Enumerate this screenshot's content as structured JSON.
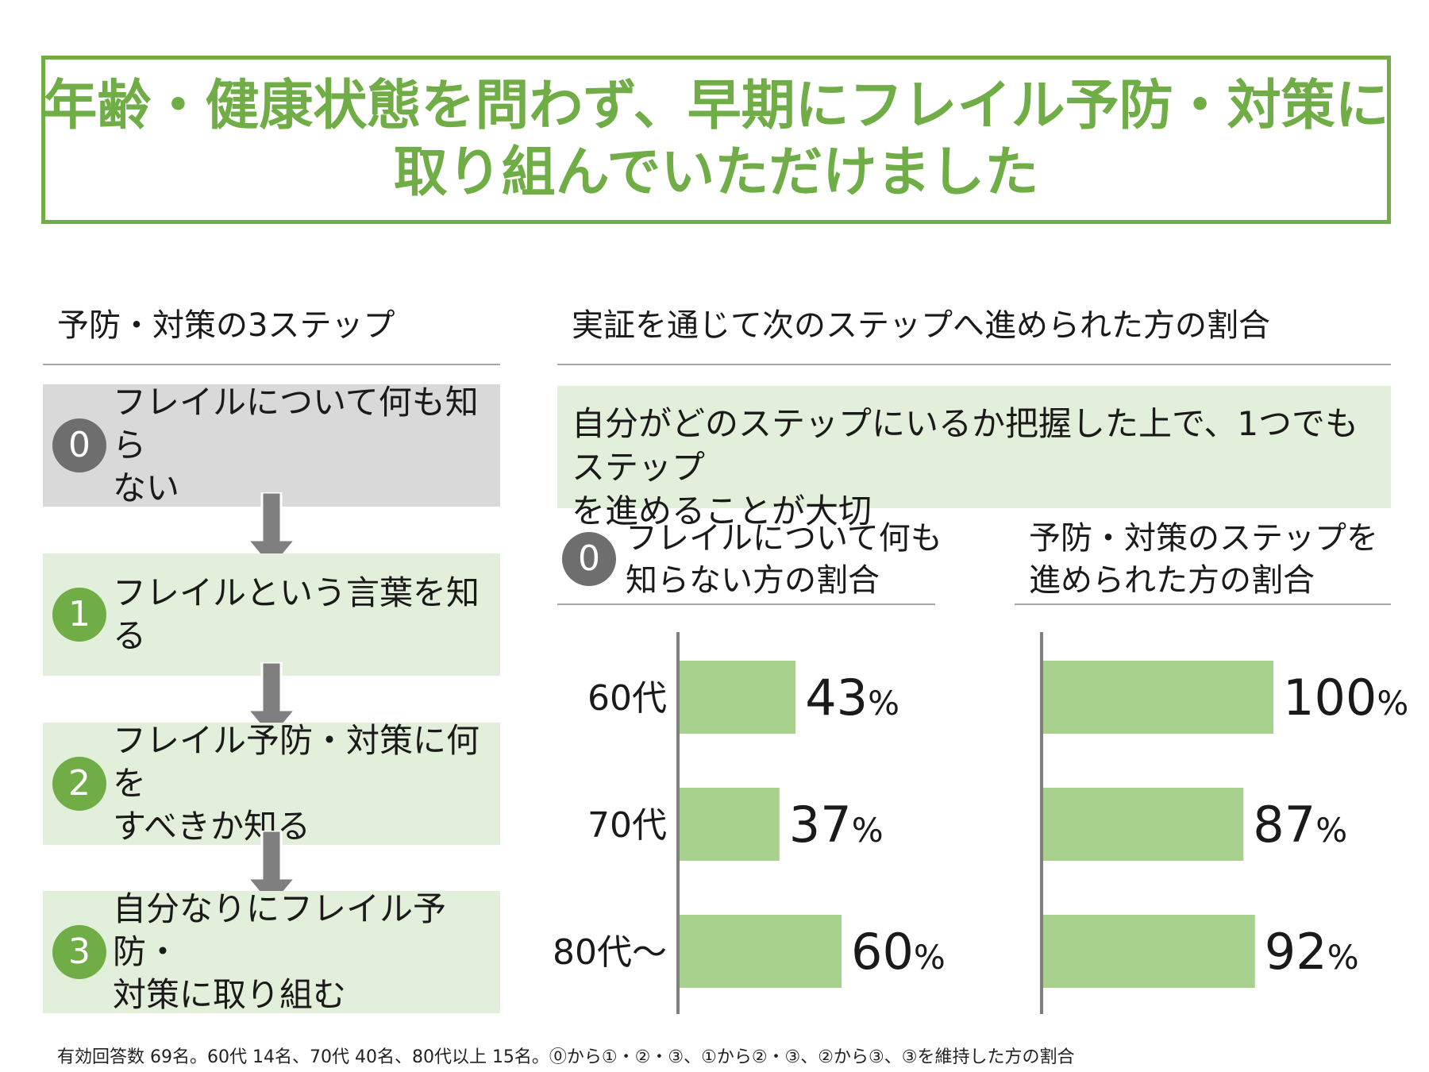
{
  "title": {
    "line1": "年齢・健康状態を問わず、早期にフレイル予防・対策に",
    "line2": "取り組んでいただけました"
  },
  "steps_section": {
    "heading": "予防・対策の3ステップ",
    "steps": [
      {
        "num": "0",
        "line1": "フレイルについて何も知ら",
        "line2": "ない"
      },
      {
        "num": "1",
        "line1": "フレイルという言葉を知る",
        "line2": ""
      },
      {
        "num": "2",
        "line1": "フレイル予防・対策に何を",
        "line2": "すべきか知る"
      },
      {
        "num": "3",
        "line1": "自分なりにフレイル予防・",
        "line2": "対策に取り組む"
      }
    ]
  },
  "results_section": {
    "heading": "実証を通じて次のステップへ進められた方の割合",
    "note_line1": "自分がどのステップにいるか把握した上で、1つでもステップ",
    "note_line2": "を進めることが大切"
  },
  "colors": {
    "accent": "#70ad47",
    "bar": "#a9d18e",
    "light_green": "#e2efda",
    "gray_box": "#d9d9d9",
    "dark_gray": "#6e6e6e"
  },
  "chart_data": [
    {
      "type": "bar",
      "orientation": "horizontal",
      "circle": "0",
      "title_line1": "フレイルについて何も",
      "title_line2": "知らない方の割合",
      "categories": [
        "60代",
        "70代",
        "80代～"
      ],
      "values": [
        43,
        37,
        60
      ],
      "unit": "%",
      "xlim": [
        0,
        100
      ]
    },
    {
      "type": "bar",
      "orientation": "horizontal",
      "title_line1": "予防・対策のステップを",
      "title_line2": "進められた方の割合",
      "categories": [
        "60代",
        "70代",
        "80代～"
      ],
      "values": [
        100,
        87,
        92
      ],
      "unit": "%",
      "xlim": [
        0,
        100
      ]
    }
  ],
  "footnote": "有効回答数 69名。60代 14名、70代 40名、80代以上 15名。⓪から①・②・③、①から②・③、②から③、③を維持した方の割合"
}
